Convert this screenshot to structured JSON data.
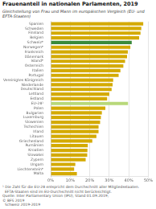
{
  "chart_data": {
    "type": "bar",
    "orientation": "horizontal",
    "title": "Frauenanteil in nationalen Parlamenten, 2019",
    "subtitle": "Gleichstellung von Frau und Mann im europäischen Vergleich (EU- und EFTA-Staaten)",
    "categories": [
      "Spanien",
      "Schweden",
      "Finnland",
      "Belgien",
      "Schweiz*",
      "Norwegen*",
      "Frankreich",
      "Dänemark",
      "Island*",
      "Österreich",
      "Italien",
      "Portugal",
      "Vereinigtes Königreich",
      "Niederlande",
      "Deutschland",
      "Lettland",
      "Estland",
      "EU-28¹",
      "Polen",
      "Bulgarien",
      "Luxemburg",
      "Slowenien",
      "Tschechien",
      "Irland",
      "Litauen",
      "Griechenland",
      "Rumänien",
      "Kroatien",
      "Slowakei",
      "Zypern",
      "Ungarn",
      "Liechtenstein*",
      "Malta"
    ],
    "values": [
      47.4,
      46.4,
      46.0,
      45.3,
      41.5,
      40.8,
      39.5,
      39.1,
      38.1,
      37.2,
      35.7,
      34.8,
      32.0,
      31.7,
      31.2,
      30.0,
      28.9,
      39.6,
      28.0,
      26.2,
      25.7,
      25.3,
      24.5,
      24.5,
      23.4,
      21.3,
      19.0,
      18.8,
      18.7,
      17.9,
      12.6,
      12.0,
      13.4
    ],
    "colors": [
      "#d4aa00",
      "#d4aa00",
      "#d4aa00",
      "#d4aa00",
      "#3a8a3a",
      "#d4aa00",
      "#d4aa00",
      "#d4aa00",
      "#d4aa00",
      "#d4aa00",
      "#d4aa00",
      "#d4aa00",
      "#d4aa00",
      "#d4aa00",
      "#d4aa00",
      "#d4aa00",
      "#d4aa00",
      "#b8d87a",
      "#d4aa00",
      "#d4aa00",
      "#d4aa00",
      "#d4aa00",
      "#d4aa00",
      "#d4aa00",
      "#d4aa00",
      "#d4aa00",
      "#d4aa00",
      "#d4aa00",
      "#d4aa00",
      "#d4aa00",
      "#d4aa00",
      "#d4aa00",
      "#d4aa00"
    ],
    "xlim": [
      0,
      50
    ],
    "xticks": [
      {
        "value": 0,
        "label": "0%"
      },
      {
        "value": 10,
        "label": "10%"
      },
      {
        "value": 20,
        "label": "20%"
      },
      {
        "value": 30,
        "label": "30%"
      },
      {
        "value": 40,
        "label": "40%"
      },
      {
        "value": 50,
        "label": "50%"
      }
    ],
    "grid": true,
    "annotations": [
      "¹ Die Zahl für die EU-28 entspricht dem Durchschnitt aller Mitgliedsstaaten.",
      "  EFTA-Staaten sind im EU-Durchschnitt nicht berücksichtigt.",
      "Quelle: Inter Parliamentary Union (IPU), Stand 01.09.2019;",
      "© BFS 2019",
      "  Schweiz 2019-2019"
    ]
  }
}
